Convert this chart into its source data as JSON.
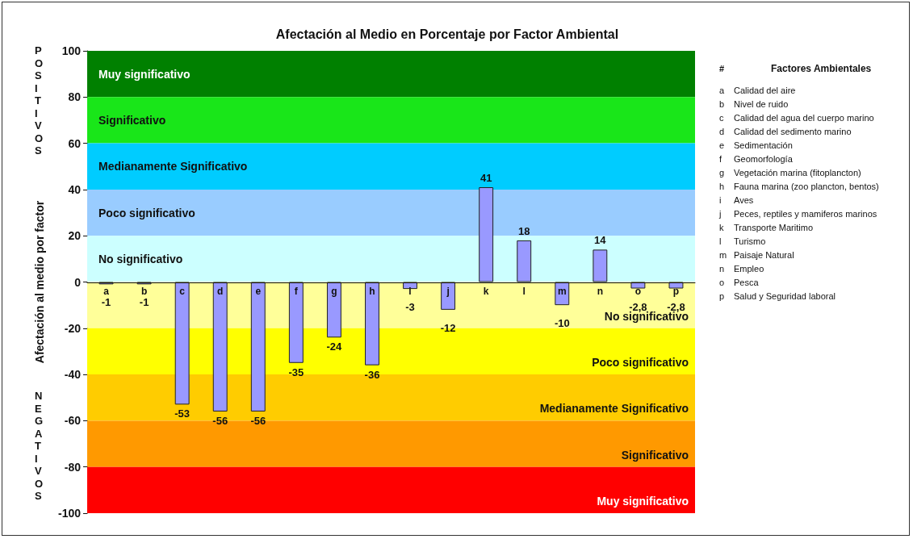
{
  "chart_data": {
    "type": "bar",
    "title": "Afectación al Medio en Porcentaje por Factor Ambiental",
    "ylabel": "Afectación al medio por factor",
    "categories": [
      "a",
      "b",
      "c",
      "d",
      "e",
      "f",
      "g",
      "h",
      "i",
      "j",
      "k",
      "l",
      "m",
      "n",
      "o",
      "p"
    ],
    "values": [
      -1,
      -1,
      -53,
      -56,
      -56,
      -35,
      -24,
      -36,
      -3,
      -12,
      41,
      18,
      -10,
      14,
      -2.8,
      -2.8
    ],
    "value_labels": [
      "-1",
      "-1",
      "-53",
      "-56",
      "-56",
      "-35",
      "-24",
      "-36",
      "-3",
      "-12",
      "41",
      "18",
      "-10",
      "14",
      "-2,8",
      "-2,8"
    ],
    "color": "#9999ff",
    "ylim": [
      -100,
      100
    ],
    "yticks": [
      -100,
      -80,
      -60,
      -40,
      -20,
      0,
      20,
      40,
      60,
      80,
      100
    ],
    "bands": [
      {
        "axis": "y",
        "from": 80,
        "to": 100,
        "label": "Muy significativo",
        "color": "#008000"
      },
      {
        "axis": "y",
        "from": 60,
        "to": 80,
        "label": "Significativo",
        "color": "#19e619"
      },
      {
        "axis": "y",
        "from": 40,
        "to": 60,
        "label": "Medianamente Significativo",
        "color": "#00ccff"
      },
      {
        "axis": "y",
        "from": 20,
        "to": 40,
        "label": "Poco significativo",
        "color": "#99ccff"
      },
      {
        "axis": "y",
        "from": 0,
        "to": 20,
        "label": "No significativo",
        "color": "#ccffff"
      },
      {
        "axis": "y",
        "from": -20,
        "to": 0,
        "label": "No significativo",
        "color": "#ffff99"
      },
      {
        "axis": "y",
        "from": -40,
        "to": -20,
        "label": "Poco significativo",
        "color": "#ffff00"
      },
      {
        "axis": "y",
        "from": -60,
        "to": -40,
        "label": "Medianamente Significativo",
        "color": "#ffcc00"
      },
      {
        "axis": "y",
        "from": -80,
        "to": -60,
        "label": "Significativo",
        "color": "#ff9900"
      },
      {
        "axis": "y",
        "from": -100,
        "to": -80,
        "label": "Muy significativo",
        "color": "#ff0000"
      }
    ],
    "annotations": [
      "POSITIVOS",
      "NEGATIVOS",
      "#",
      "Factores Ambientales",
      "a Calidad del aire",
      "b Nivel de ruido",
      "c Calidad del agua del cuerpo marino",
      "d Calidad del sedimento marino",
      "e Sedimentación",
      "f Geomorfología",
      "g Vegetación marina (fitoplancton)",
      "h Fauna marina (zoo plancton, bentos)",
      "i Aves",
      "j Peces, reptiles y mamiferos marinos",
      "k Transporte Maritimo",
      "l Turismo",
      "m Paisaje Natural",
      "n Empleo",
      "o Pesca",
      "p Salud y Seguridad laboral"
    ]
  }
}
